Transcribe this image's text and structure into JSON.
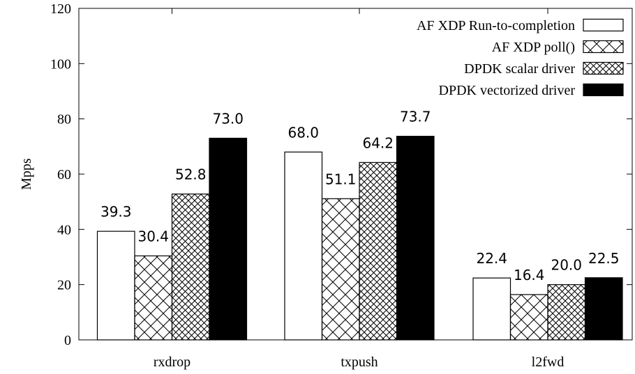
{
  "chart_data": {
    "type": "bar",
    "title": "",
    "xlabel": "",
    "ylabel": "Mpps",
    "ylim": [
      0,
      120
    ],
    "yticks": [
      0,
      20,
      40,
      60,
      80,
      100,
      120
    ],
    "grid": false,
    "legend_position": "top-right",
    "categories": [
      "rxdrop",
      "txpush",
      "l2fwd"
    ],
    "series": [
      {
        "name": "AF XDP Run-to-completion",
        "pattern": "empty",
        "color": "#ffffff",
        "values": [
          39.3,
          68.0,
          22.4
        ],
        "labels": [
          "39.3",
          "68.0",
          "22.4"
        ]
      },
      {
        "name": "AF XDP poll()",
        "pattern": "crosshatch-wide",
        "color": "#000000",
        "values": [
          30.4,
          51.1,
          16.4
        ],
        "labels": [
          "30.4",
          "51.1",
          "16.4"
        ]
      },
      {
        "name": "DPDK scalar driver",
        "pattern": "crosshatch-dense",
        "color": "#000000",
        "values": [
          52.8,
          64.2,
          20.0
        ],
        "labels": [
          "52.8",
          "64.2",
          "20.0"
        ]
      },
      {
        "name": "DPDK vectorized driver",
        "pattern": "solid",
        "color": "#000000",
        "values": [
          73.0,
          73.7,
          22.5
        ],
        "labels": [
          "73.0",
          "73.7",
          "22.5"
        ]
      }
    ]
  }
}
